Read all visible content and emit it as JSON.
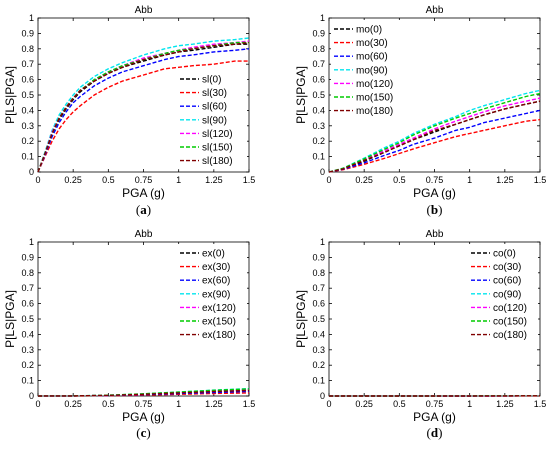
{
  "chart_data": [
    {
      "type": "line",
      "title": "Abb",
      "xlabel": "PGA (g)",
      "ylabel": "P[LS|PGA]",
      "caption": "a",
      "xlim": [
        0,
        1.5
      ],
      "ylim": [
        0,
        1
      ],
      "xticks": [
        "0",
        "0.25",
        "0.5",
        "0.75",
        "1",
        "1.25",
        "1.5"
      ],
      "yticks": [
        "0",
        "0.1",
        "0.2",
        "0.3",
        "0.4",
        "0.5",
        "0.6",
        "0.7",
        "0.8",
        "0.9",
        "1"
      ],
      "legend_position": "bottom-right",
      "x": [
        0,
        0.05,
        0.1,
        0.15,
        0.2,
        0.25,
        0.3,
        0.4,
        0.5,
        0.6,
        0.75,
        0.9,
        1.0,
        1.1,
        1.25,
        1.4,
        1.5
      ],
      "series": [
        {
          "name": "sl(0)",
          "color": "#000000",
          "values": [
            0,
            0.12,
            0.25,
            0.34,
            0.41,
            0.47,
            0.52,
            0.59,
            0.64,
            0.68,
            0.72,
            0.76,
            0.78,
            0.79,
            0.81,
            0.83,
            0.83
          ]
        },
        {
          "name": "sl(30)",
          "color": "#ff0000",
          "values": [
            0,
            0.1,
            0.2,
            0.28,
            0.34,
            0.39,
            0.43,
            0.5,
            0.55,
            0.59,
            0.63,
            0.67,
            0.68,
            0.69,
            0.7,
            0.72,
            0.72
          ]
        },
        {
          "name": "sl(60)",
          "color": "#0000ff",
          "values": [
            0,
            0.11,
            0.23,
            0.32,
            0.39,
            0.45,
            0.49,
            0.56,
            0.61,
            0.65,
            0.69,
            0.73,
            0.75,
            0.76,
            0.78,
            0.79,
            0.8
          ]
        },
        {
          "name": "sl(90)",
          "color": "#00e5ee",
          "values": [
            0,
            0.13,
            0.27,
            0.37,
            0.44,
            0.5,
            0.55,
            0.62,
            0.67,
            0.71,
            0.76,
            0.8,
            0.82,
            0.83,
            0.85,
            0.86,
            0.87
          ]
        },
        {
          "name": "sl(120)",
          "color": "#ff00ff",
          "values": [
            0,
            0.12,
            0.26,
            0.35,
            0.42,
            0.48,
            0.53,
            0.6,
            0.65,
            0.69,
            0.74,
            0.77,
            0.79,
            0.81,
            0.83,
            0.84,
            0.85
          ]
        },
        {
          "name": "sl(150)",
          "color": "#00cc00",
          "values": [
            0,
            0.12,
            0.25,
            0.35,
            0.42,
            0.48,
            0.53,
            0.6,
            0.65,
            0.69,
            0.73,
            0.77,
            0.79,
            0.8,
            0.82,
            0.84,
            0.84
          ]
        },
        {
          "name": "sl(180)",
          "color": "#800000",
          "values": [
            0,
            0.12,
            0.25,
            0.35,
            0.42,
            0.48,
            0.53,
            0.59,
            0.64,
            0.68,
            0.73,
            0.76,
            0.78,
            0.8,
            0.82,
            0.83,
            0.84
          ]
        }
      ]
    },
    {
      "type": "line",
      "title": "Abb",
      "xlabel": "PGA (g)",
      "ylabel": "P[LS|PGA]",
      "caption": "b",
      "xlim": [
        0,
        1.5
      ],
      "ylim": [
        0,
        1
      ],
      "xticks": [
        "0",
        "0.25",
        "0.5",
        "0.75",
        "1",
        "1.25",
        "1.5"
      ],
      "yticks": [
        "0",
        "0.1",
        "0.2",
        "0.3",
        "0.4",
        "0.5",
        "0.6",
        "0.7",
        "0.8",
        "0.9",
        "1"
      ],
      "legend_position": "top-left",
      "x": [
        0,
        0.1,
        0.25,
        0.4,
        0.5,
        0.6,
        0.75,
        0.9,
        1.0,
        1.1,
        1.25,
        1.4,
        1.5
      ],
      "series": [
        {
          "name": "mo(0)",
          "color": "#000000",
          "values": [
            0,
            0.02,
            0.07,
            0.13,
            0.17,
            0.21,
            0.26,
            0.31,
            0.34,
            0.37,
            0.41,
            0.44,
            0.46
          ]
        },
        {
          "name": "mo(30)",
          "color": "#ff0000",
          "values": [
            0,
            0.015,
            0.05,
            0.09,
            0.12,
            0.15,
            0.19,
            0.23,
            0.25,
            0.27,
            0.3,
            0.33,
            0.34
          ]
        },
        {
          "name": "mo(60)",
          "color": "#0000ff",
          "values": [
            0,
            0.018,
            0.06,
            0.11,
            0.14,
            0.18,
            0.22,
            0.27,
            0.29,
            0.32,
            0.35,
            0.38,
            0.4
          ]
        },
        {
          "name": "mo(90)",
          "color": "#00e5ee",
          "values": [
            0,
            0.025,
            0.09,
            0.16,
            0.2,
            0.25,
            0.31,
            0.36,
            0.4,
            0.43,
            0.47,
            0.51,
            0.53
          ]
        },
        {
          "name": "mo(120)",
          "color": "#ff00ff",
          "values": [
            0,
            0.022,
            0.08,
            0.14,
            0.18,
            0.22,
            0.28,
            0.33,
            0.36,
            0.39,
            0.43,
            0.46,
            0.48
          ]
        },
        {
          "name": "mo(150)",
          "color": "#00cc00",
          "values": [
            0,
            0.024,
            0.085,
            0.15,
            0.19,
            0.24,
            0.3,
            0.35,
            0.38,
            0.41,
            0.45,
            0.49,
            0.51
          ]
        },
        {
          "name": "mo(180)",
          "color": "#800000",
          "values": [
            0,
            0.02,
            0.075,
            0.13,
            0.17,
            0.21,
            0.27,
            0.31,
            0.34,
            0.37,
            0.41,
            0.44,
            0.46
          ]
        }
      ]
    },
    {
      "type": "line",
      "title": "Abb",
      "xlabel": "PGA (g)",
      "ylabel": "P[LS|PGA]",
      "caption": "c",
      "xlim": [
        0,
        1.5
      ],
      "ylim": [
        0,
        1
      ],
      "xticks": [
        "0",
        "0.25",
        "0.5",
        "0.75",
        "1",
        "1.25",
        "1.5"
      ],
      "yticks": [
        "0",
        "0.1",
        "0.2",
        "0.3",
        "0.4",
        "0.5",
        "0.6",
        "0.7",
        "0.8",
        "0.9",
        "1"
      ],
      "legend_position": "top-right",
      "x": [
        0,
        0.25,
        0.5,
        0.75,
        1.0,
        1.25,
        1.5
      ],
      "series": [
        {
          "name": "ex(0)",
          "color": "#000000",
          "values": [
            0,
            0.0005,
            0.004,
            0.012,
            0.022,
            0.032,
            0.04
          ]
        },
        {
          "name": "ex(30)",
          "color": "#ff0000",
          "values": [
            0,
            0.0003,
            0.002,
            0.006,
            0.011,
            0.016,
            0.02
          ]
        },
        {
          "name": "ex(60)",
          "color": "#0000ff",
          "values": [
            0,
            0.0004,
            0.003,
            0.009,
            0.016,
            0.023,
            0.03
          ]
        },
        {
          "name": "ex(90)",
          "color": "#00e5ee",
          "values": [
            0,
            0.0006,
            0.005,
            0.014,
            0.026,
            0.038,
            0.048
          ]
        },
        {
          "name": "ex(120)",
          "color": "#ff00ff",
          "values": [
            0,
            0.0005,
            0.004,
            0.012,
            0.022,
            0.031,
            0.04
          ]
        },
        {
          "name": "ex(150)",
          "color": "#00cc00",
          "values": [
            0,
            0.0006,
            0.005,
            0.014,
            0.025,
            0.037,
            0.046
          ]
        },
        {
          "name": "ex(180)",
          "color": "#800000",
          "values": [
            0,
            0.0005,
            0.004,
            0.011,
            0.02,
            0.029,
            0.036
          ]
        }
      ]
    },
    {
      "type": "line",
      "title": "Abb",
      "xlabel": "PGA (g)",
      "ylabel": "P[LS|PGA]",
      "caption": "d",
      "xlim": [
        0,
        1.5
      ],
      "ylim": [
        0,
        1
      ],
      "xticks": [
        "0",
        "0.25",
        "0.5",
        "0.75",
        "1",
        "1.25",
        "1.5"
      ],
      "yticks": [
        "0",
        "0.1",
        "0.2",
        "0.3",
        "0.4",
        "0.5",
        "0.6",
        "0.7",
        "0.8",
        "0.9",
        "1"
      ],
      "legend_position": "top-right",
      "x": [
        0,
        0.25,
        0.5,
        0.75,
        1.0,
        1.25,
        1.5
      ],
      "series": [
        {
          "name": "co(0)",
          "color": "#000000",
          "values": [
            0,
            0,
            0,
            0,
            0,
            0.001,
            0.001
          ]
        },
        {
          "name": "co(30)",
          "color": "#ff0000",
          "values": [
            0,
            0,
            0,
            0,
            0,
            0,
            0.0005
          ]
        },
        {
          "name": "co(60)",
          "color": "#0000ff",
          "values": [
            0,
            0,
            0,
            0,
            0,
            0.0005,
            0.001
          ]
        },
        {
          "name": "co(90)",
          "color": "#00e5ee",
          "values": [
            0,
            0,
            0,
            0,
            0.0005,
            0.001,
            0.002
          ]
        },
        {
          "name": "co(120)",
          "color": "#ff00ff",
          "values": [
            0,
            0,
            0,
            0,
            0,
            0.001,
            0.001
          ]
        },
        {
          "name": "co(150)",
          "color": "#00cc00",
          "values": [
            0,
            0,
            0,
            0,
            0.0005,
            0.001,
            0.0015
          ]
        },
        {
          "name": "co(180)",
          "color": "#800000",
          "values": [
            0,
            0,
            0,
            0,
            0,
            0.0005,
            0.001
          ]
        }
      ]
    }
  ]
}
